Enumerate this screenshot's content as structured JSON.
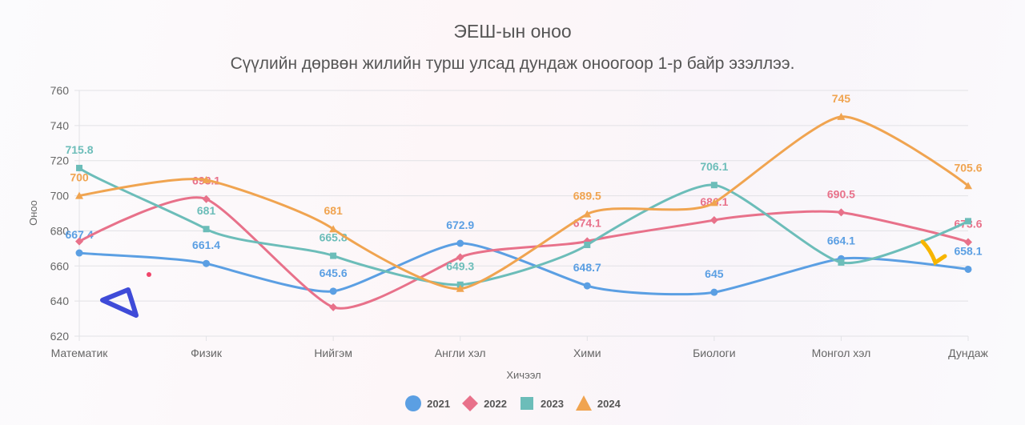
{
  "chart_data": {
    "type": "line",
    "title": "ЭЕШ-ын оноо",
    "subtitle": "Сүүлийн дөрвөн жилийн турш улсад дундаж оноогоор 1-р байр эзэллээ.",
    "xlabel": "Хичээл",
    "ylabel": "Оноо",
    "ylim": [
      620,
      760
    ],
    "yticks": [
      "620",
      "640",
      "660",
      "680",
      "700",
      "720",
      "740",
      "760"
    ],
    "categories": [
      "Математик",
      "Физик",
      "Нийгэм",
      "Англи хэл",
      "Хими",
      "Биологи",
      "Монгол хэл",
      "Дундаж"
    ],
    "grid": true,
    "legend_position": "bottom",
    "series": [
      {
        "name": "2021",
        "color": "#5b9fe3",
        "marker": "circle",
        "values": [
          667.4,
          661.4,
          645.6,
          672.9,
          648.7,
          645,
          664.1,
          658.1
        ],
        "labels": [
          "667.4",
          "661.4",
          "645.6",
          "672.9",
          "648.7",
          "645",
          "664.1",
          "658.1"
        ]
      },
      {
        "name": "2022",
        "color": "#e8718a",
        "marker": "diamond",
        "values": [
          674,
          698.1,
          636.5,
          665,
          674.1,
          686.1,
          690.5,
          673.6
        ],
        "labels": [
          null,
          "698.1",
          null,
          null,
          "674.1",
          "686.1",
          "690.5",
          "673.6"
        ]
      },
      {
        "name": "2023",
        "color": "#6cbdb9",
        "marker": "square",
        "values": [
          715.8,
          681,
          665.8,
          649.3,
          672,
          706.1,
          662,
          685.5
        ],
        "labels": [
          "715.8",
          "681",
          "665.8",
          "649.3",
          null,
          "706.1",
          null,
          null
        ]
      },
      {
        "name": "2024",
        "color": "#f0a450",
        "marker": "triangle",
        "values": [
          700,
          709,
          681,
          647,
          689.5,
          696,
          745,
          705.6
        ],
        "labels": [
          "700",
          null,
          "681",
          null,
          "689.5",
          null,
          "745",
          "705.6"
        ]
      }
    ]
  }
}
